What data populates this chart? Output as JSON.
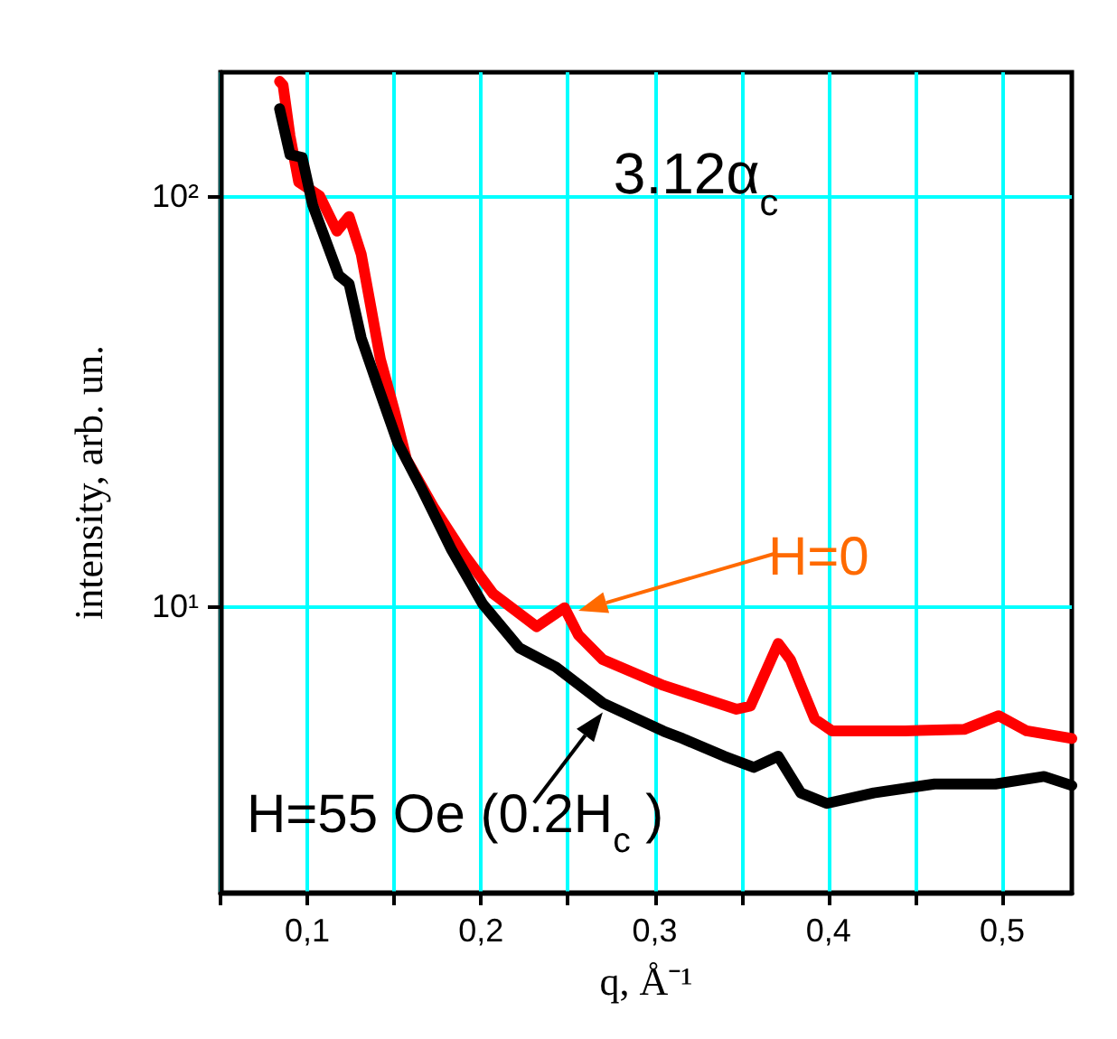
{
  "chart_data": {
    "type": "line",
    "xlabel": "q, Å⁻¹",
    "ylabel": "intensity, arb. un.",
    "annotations": [
      "3.12α$_{c}$",
      "H=0",
      {
        "text": "H=55 Oe (0.2H$_{c}$ )",
        "x": 0.27,
        "y": 5.5
      }
    ],
    "series": [
      {
        "name": null,
        "color": "#ff0000",
        "x": [
          0.084,
          0.086,
          0.09,
          0.095,
          0.107,
          0.117,
          0.124,
          0.131,
          0.142,
          0.15,
          0.157,
          0.173,
          0.191,
          0.207,
          0.232,
          0.248,
          0.256,
          0.27,
          0.305,
          0.347,
          0.355,
          0.371,
          0.378,
          0.392,
          0.402,
          0.444,
          0.478,
          0.498,
          0.514,
          0.54
        ],
        "values": [
          190,
          186,
          140,
          108,
          100,
          82,
          89,
          72,
          40,
          30,
          22.8,
          17.3,
          13.2,
          10.7,
          8.9,
          9.9,
          8.5,
          7.4,
          6.4,
          5.6,
          5.7,
          8.1,
          7.4,
          5.3,
          4.96,
          4.96,
          5.0,
          5.4,
          4.96,
          4.75
        ]
      },
      {
        "name": null,
        "color": "#000000",
        "x": [
          0.084,
          0.09,
          0.097,
          0.103,
          0.118,
          0.124,
          0.131,
          0.142,
          0.152,
          0.166,
          0.183,
          0.201,
          0.222,
          0.243,
          0.27,
          0.305,
          0.316,
          0.34,
          0.357,
          0.371,
          0.384,
          0.399,
          0.426,
          0.461,
          0.496,
          0.524,
          0.54
        ],
        "values": [
          163,
          126,
          124,
          95,
          64,
          61,
          45,
          33,
          25,
          19.2,
          13.7,
          10.1,
          7.9,
          7.1,
          5.8,
          4.95,
          4.75,
          4.3,
          4.04,
          4.3,
          3.5,
          3.3,
          3.5,
          3.68,
          3.68,
          3.84,
          3.65
        ]
      }
    ],
    "xlim": [
      0.05,
      0.54
    ],
    "xticks": [
      {
        "value": 0.05,
        "label": null
      },
      {
        "value": 0.1,
        "label": "0,1"
      },
      {
        "value": 0.15,
        "label": null
      },
      {
        "value": 0.2,
        "label": "0,2"
      },
      {
        "value": 0.25,
        "label": null
      },
      {
        "value": 0.3,
        "label": "0,3"
      },
      {
        "value": 0.35,
        "label": null
      },
      {
        "value": 0.4,
        "label": "0,4"
      },
      {
        "value": 0.45,
        "label": null
      },
      {
        "value": 0.5,
        "label": "0,5"
      }
    ],
    "ylim": [
      2,
      200
    ],
    "yticks": [
      {
        "value": 10,
        "label": "10¹"
      },
      {
        "value": 100,
        "label": "10²"
      }
    ],
    "log": "y",
    "grid": true,
    "marker": "none",
    "line_style": "solid"
  }
}
